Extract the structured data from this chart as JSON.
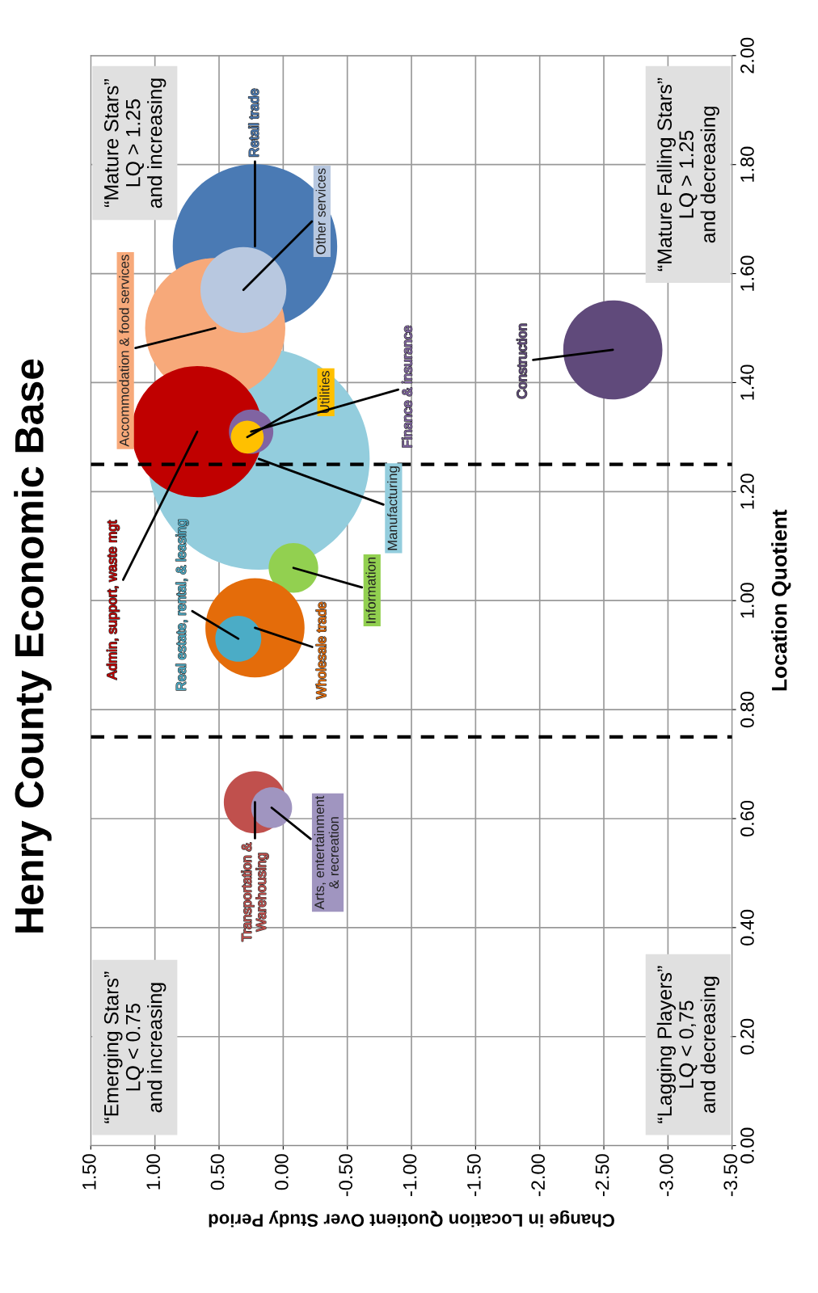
{
  "chart_data": {
    "type": "bubble",
    "title": "Henry County Economic Base",
    "xlabel": "Change in Location Quotient Over Study Period",
    "ylabel": "Location Quotient",
    "ylim": [
      0,
      2
    ],
    "yticks": [
      {
        "value": 0,
        "label": "0.00"
      },
      {
        "value": 0.2,
        "label": "0.20"
      },
      {
        "value": 0.4,
        "label": "0.40"
      },
      {
        "value": 0.6,
        "label": "0.60"
      },
      {
        "value": 0.8,
        "label": "0.80"
      },
      {
        "value": 1.0,
        "label": "1.00"
      },
      {
        "value": 1.2,
        "label": "1.20"
      },
      {
        "value": 1.4,
        "label": "1.40"
      },
      {
        "value": 1.6,
        "label": "1.60"
      },
      {
        "value": 1.8,
        "label": "1.80"
      },
      {
        "value": 2.0,
        "label": "2.00"
      }
    ],
    "xlim": [
      1.5,
      -3.5
    ],
    "xticks": [
      {
        "value": 1.5,
        "label": "1.50"
      },
      {
        "value": 1.0,
        "label": "1.00"
      },
      {
        "value": 0.5,
        "label": "0.50"
      },
      {
        "value": 0,
        "label": "0.00"
      },
      {
        "value": -0.5,
        "label": "-0.50"
      },
      {
        "value": -1.0,
        "label": "-1.00"
      },
      {
        "value": -1.5,
        "label": "-1.50"
      },
      {
        "value": -2.0,
        "label": "-2.00"
      },
      {
        "value": -2.5,
        "label": "-2.50"
      },
      {
        "value": -3.0,
        "label": "-3.00"
      },
      {
        "value": -3.5,
        "label": "-3.50"
      }
    ],
    "grid": true,
    "legend": false,
    "series": [
      {
        "name": "Retail trade",
        "color": "#4a7ab4",
        "x": [
          0.22
        ],
        "values": [
          1.65
        ],
        "sizes": [
          0.55
        ]
      },
      {
        "name": "Manufacturing",
        "color": "#93cddd",
        "x": [
          0.19
        ],
        "values": [
          1.26
        ],
        "sizes": [
          1.0
        ]
      },
      {
        "name": "Accommodation & food services",
        "color": "#f7a97a",
        "x": [
          0.53
        ],
        "values": [
          1.5
        ],
        "sizes": [
          0.4
        ]
      },
      {
        "name": "Other services",
        "color": "#b8c8e0",
        "x": [
          0.31
        ],
        "values": [
          1.57
        ],
        "sizes": [
          0.15
        ]
      },
      {
        "name": "Construction",
        "color": "#604a7b",
        "x": [
          -2.57
        ],
        "values": [
          1.46
        ],
        "sizes": [
          0.2
        ]
      },
      {
        "name": "Admin, support, waste mgt",
        "color": "#c00000",
        "x": [
          0.67
        ],
        "values": [
          1.31
        ],
        "sizes": [
          0.35
        ]
      },
      {
        "name": "Finance & insurance",
        "color": "#8064a2",
        "x": [
          0.25
        ],
        "values": [
          1.31
        ],
        "sizes": [
          0.04
        ]
      },
      {
        "name": "Utilities",
        "color": "#ffc000",
        "x": [
          0.28
        ],
        "values": [
          1.3
        ],
        "sizes": [
          0.022
        ]
      },
      {
        "name": "Information",
        "color": "#92d050",
        "x": [
          -0.08
        ],
        "values": [
          1.06
        ],
        "sizes": [
          0.05
        ]
      },
      {
        "name": "Wholesale trade",
        "color": "#e46c0a",
        "x": [
          0.22
        ],
        "values": [
          0.95
        ],
        "sizes": [
          0.2
        ]
      },
      {
        "name": "Real estate, rental, & leasing",
        "color": "#4bacc6",
        "x": [
          0.35
        ],
        "values": [
          0.93
        ],
        "sizes": [
          0.043
        ]
      },
      {
        "name": "Transportation &\nWarehousing",
        "color": "#c0504d",
        "x": [
          0.22
        ],
        "values": [
          0.63
        ],
        "sizes": [
          0.079
        ]
      },
      {
        "name": "Arts, entertainment\n& recreation",
        "color": "#a095c0",
        "x": [
          0.09
        ],
        "values": [
          0.62
        ],
        "sizes": [
          0.034
        ]
      }
    ],
    "ref_lines": [
      {
        "axis": "y",
        "value": 0.75,
        "color": "#000000",
        "line_style": "dashed"
      },
      {
        "axis": "y",
        "value": 1.25,
        "color": "#000000",
        "line_style": "dashed"
      }
    ],
    "annotations": [
      "“Emerging Stars”\nLQ < 0.75\nand increasing",
      "“Lagging Players”\nLQ < 0,75\nand decreasing",
      "“Mature Stars”\nLQ > 1.25\nand increasing",
      "“Mature Falling Stars”\nLQ > 1.25\nand decreasing"
    ]
  }
}
